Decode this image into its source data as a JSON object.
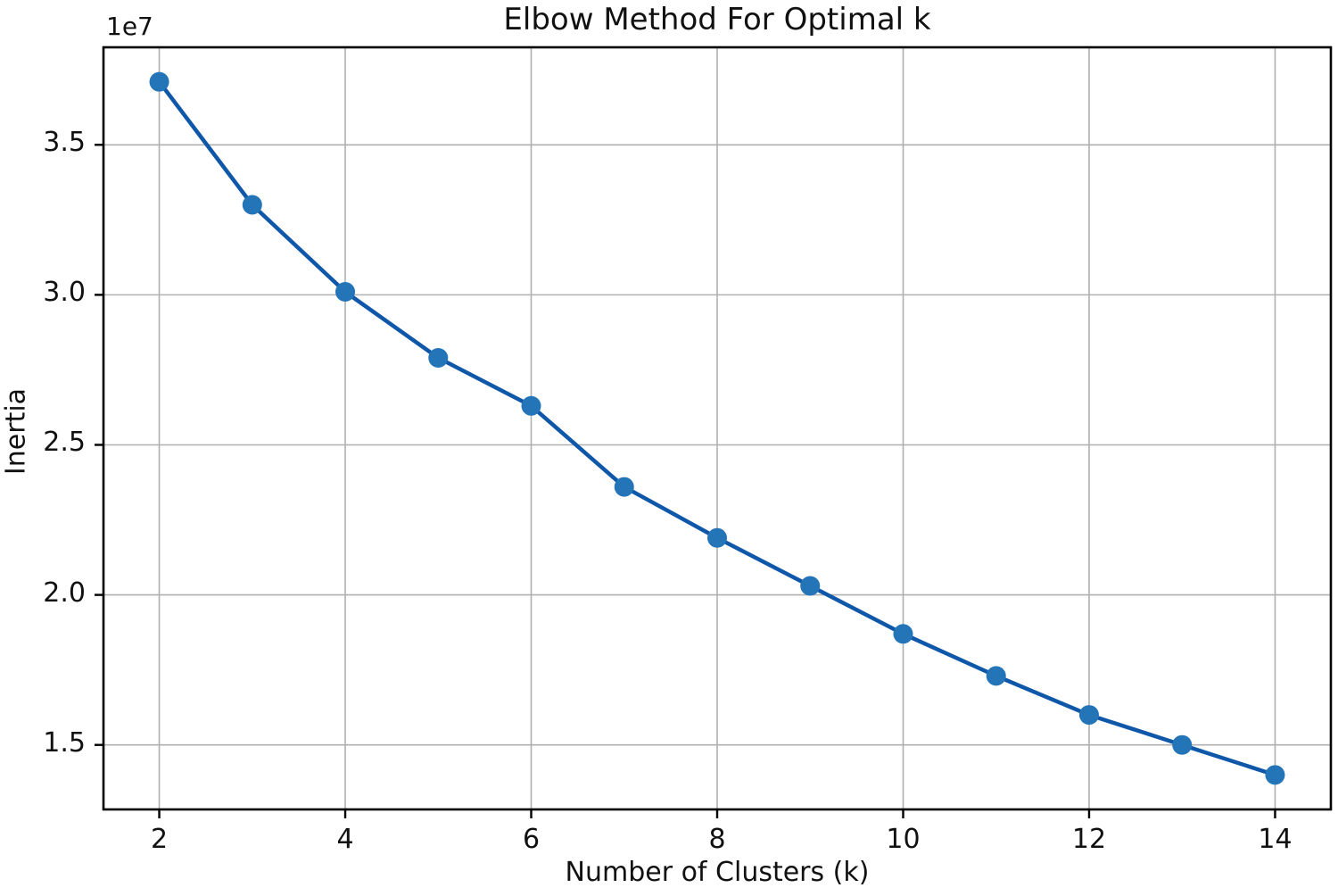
{
  "chart_data": {
    "type": "line",
    "title": "Elbow Method For Optimal k",
    "xlabel": "Number of Clusters (k)",
    "ylabel": "Inertia",
    "offset_text": "1e7",
    "series": [
      {
        "name": "Inertia",
        "x": [
          2,
          3,
          4,
          5,
          6,
          7,
          8,
          9,
          10,
          11,
          12,
          13,
          14
        ],
        "values": [
          37100000,
          33000000,
          30100000,
          27900000,
          26300000,
          23600000,
          21900000,
          20300000,
          18700000,
          17300000,
          16000000,
          15000000,
          14000000
        ]
      }
    ],
    "xlim": [
      1.4,
      14.6
    ],
    "ylim": [
      12850000,
      38250000
    ],
    "x_ticks": [
      2,
      4,
      6,
      8,
      10,
      12,
      14
    ],
    "x_tick_labels": [
      "2",
      "4",
      "6",
      "8",
      "10",
      "12",
      "14"
    ],
    "y_ticks": [
      15000000,
      20000000,
      25000000,
      30000000,
      35000000
    ],
    "y_tick_labels": [
      "1.5",
      "2.0",
      "2.5",
      "3.0",
      "3.5"
    ],
    "grid": true,
    "legend_position": "none",
    "colors": {
      "line": "#0f57a8",
      "marker": "#2474b8",
      "grid": "#b0b0b0",
      "spine": "#000000",
      "text": "#111111",
      "background": "#ffffff"
    },
    "style": {
      "line_width": 4.5,
      "marker_radius": 11,
      "marker_shape": "circle"
    }
  }
}
